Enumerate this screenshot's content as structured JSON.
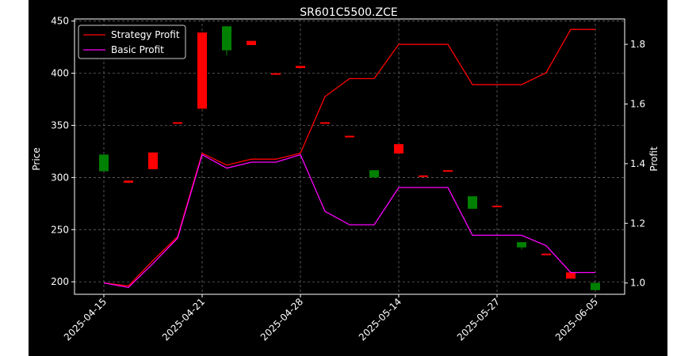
{
  "chart_data": {
    "type": "candlestick+line",
    "title": "SR601C5500.ZCE",
    "xlabel": "",
    "ylabel": "Price",
    "y2label": "Profit",
    "ylim": [
      188,
      452
    ],
    "y2lim": [
      0.962,
      1.885
    ],
    "yticks": [
      200,
      250,
      300,
      350,
      400,
      450
    ],
    "y2ticks": [
      1.0,
      1.2,
      1.4,
      1.6,
      1.8
    ],
    "xticks": [
      "2025-04-15",
      "2025-04-21",
      "2025-04-28",
      "2025-05-14",
      "2025-05-27",
      "2025-06-05"
    ],
    "xtick_index": [
      0,
      4,
      8,
      12,
      16,
      20
    ],
    "grid": true,
    "legend": {
      "placement": "top-left",
      "entries": [
        "Strategy Profit",
        "Basic Profit"
      ]
    },
    "candles": [
      {
        "i": 0,
        "open": 306,
        "close": 322,
        "high": 322,
        "low": 306
      },
      {
        "i": 1,
        "open": 297,
        "close": 295,
        "high": 297,
        "low": 295
      },
      {
        "i": 2,
        "open": 324,
        "close": 308,
        "high": 324,
        "low": 308
      },
      {
        "i": 3,
        "open": 353,
        "close": 352,
        "high": 353,
        "low": 352
      },
      {
        "i": 4,
        "open": 439,
        "close": 366,
        "high": 439,
        "low": 366
      },
      {
        "i": 5,
        "open": 422,
        "close": 445,
        "high": 445,
        "low": 417
      },
      {
        "i": 6,
        "open": 431,
        "close": 427,
        "high": 431,
        "low": 427
      },
      {
        "i": 7,
        "open": 400,
        "close": 399,
        "high": 400,
        "low": 399
      },
      {
        "i": 8,
        "open": 407,
        "close": 405,
        "high": 407,
        "low": 405
      },
      {
        "i": 9,
        "open": 353,
        "close": 352,
        "high": 353,
        "low": 352
      },
      {
        "i": 10,
        "open": 340,
        "close": 339,
        "high": 340,
        "low": 339
      },
      {
        "i": 11,
        "open": 300,
        "close": 307,
        "high": 307,
        "low": 300
      },
      {
        "i": 12,
        "open": 332,
        "close": 323,
        "high": 332,
        "low": 323
      },
      {
        "i": 13,
        "open": 302,
        "close": 301,
        "high": 302,
        "low": 301
      },
      {
        "i": 14,
        "open": 307,
        "close": 306,
        "high": 307,
        "low": 306
      },
      {
        "i": 15,
        "open": 270,
        "close": 282,
        "high": 282,
        "low": 270
      },
      {
        "i": 16,
        "open": 273,
        "close": 272,
        "high": 273,
        "low": 272
      },
      {
        "i": 17,
        "open": 233,
        "close": 238,
        "high": 238,
        "low": 231
      },
      {
        "i": 18,
        "open": 227,
        "close": 226,
        "high": 227,
        "low": 226
      },
      {
        "i": 19,
        "open": 209,
        "close": 203,
        "high": 209,
        "low": 203
      },
      {
        "i": 20,
        "open": 192,
        "close": 199,
        "high": 199,
        "low": 192
      }
    ],
    "series": [
      {
        "name": "Strategy Profit",
        "color": "#ff0000",
        "values": [
          1.0,
          0.99,
          1.075,
          1.155,
          1.435,
          1.395,
          1.415,
          1.415,
          1.435,
          1.625,
          1.685,
          1.685,
          1.8,
          1.8,
          1.8,
          1.665,
          1.665,
          1.665,
          1.705,
          1.85,
          1.85
        ]
      },
      {
        "name": "Basic Profit",
        "color": "#ff00ff",
        "values": [
          1.0,
          0.985,
          1.065,
          1.15,
          1.43,
          1.385,
          1.405,
          1.405,
          1.43,
          1.24,
          1.195,
          1.195,
          1.32,
          1.32,
          1.32,
          1.16,
          1.16,
          1.16,
          1.125,
          1.035,
          1.035
        ]
      }
    ],
    "up_color": "#008000",
    "down_color": "#ff0000"
  }
}
